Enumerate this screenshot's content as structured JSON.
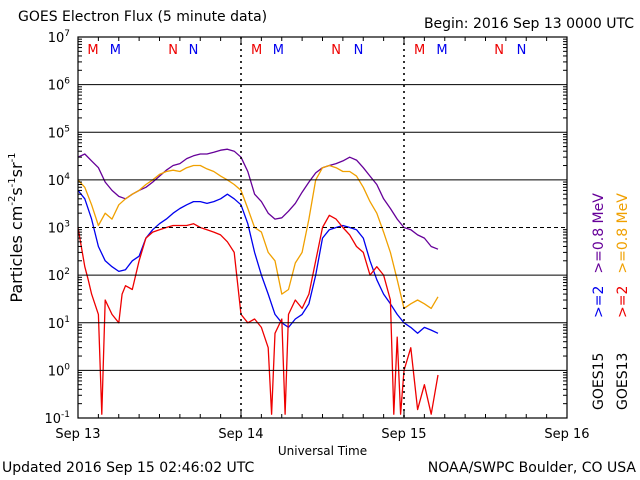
{
  "header": {
    "title": "GOES Electron Flux (5 minute data)",
    "begin": "Begin: 2016 Sep 13 0000 UTC"
  },
  "footer": {
    "updated": "Updated 2016 Sep 15 02:46:02 UTC",
    "credit": "NOAA/SWPC Boulder, CO USA"
  },
  "colors": {
    "goes15_2mev": "#0000ee",
    "goes15_08mev": "#660099",
    "goes13_2mev": "#ee0000",
    "goes13_08mev": "#f0a000"
  },
  "chart_data": {
    "type": "line",
    "xlabel": "Universal Time",
    "ylabel_parts": [
      "Particles cm",
      "-2",
      "s",
      "-1",
      "sr",
      "-1"
    ],
    "xlim": [
      0,
      72
    ],
    "ylim_exp": [
      -1,
      7
    ],
    "y_scale": "log",
    "x_ticks": [
      {
        "t": 0,
        "label": "Sep 13"
      },
      {
        "t": 24,
        "label": "Sep 14"
      },
      {
        "t": 48,
        "label": "Sep 15"
      },
      {
        "t": 72,
        "label": "Sep 16"
      }
    ],
    "y_ticks": [
      {
        "exp": -1,
        "base": "10",
        "sup": "-1"
      },
      {
        "exp": 0,
        "base": "10",
        "sup": "0"
      },
      {
        "exp": 1,
        "base": "10",
        "sup": "1"
      },
      {
        "exp": 2,
        "base": "10",
        "sup": "2"
      },
      {
        "exp": 3,
        "base": "10",
        "sup": "3"
      },
      {
        "exp": 4,
        "base": "10",
        "sup": "4"
      },
      {
        "exp": 5,
        "base": "10",
        "sup": "5"
      },
      {
        "exp": 6,
        "base": "10",
        "sup": "6"
      },
      {
        "exp": 7,
        "base": "10",
        "sup": "7"
      }
    ],
    "threshold": 1000,
    "grid": true,
    "markers": [
      {
        "t": 2.2,
        "label": "M",
        "color": "#ee0000"
      },
      {
        "t": 5.5,
        "label": "M",
        "color": "#0000ee"
      },
      {
        "t": 14.0,
        "label": "N",
        "color": "#ee0000"
      },
      {
        "t": 17.0,
        "label": "N",
        "color": "#0000ee"
      },
      {
        "t": 26.3,
        "label": "M",
        "color": "#ee0000"
      },
      {
        "t": 29.5,
        "label": "M",
        "color": "#0000ee"
      },
      {
        "t": 38.0,
        "label": "N",
        "color": "#ee0000"
      },
      {
        "t": 41.3,
        "label": "N",
        "color": "#0000ee"
      },
      {
        "t": 50.3,
        "label": "M",
        "color": "#ee0000"
      },
      {
        "t": 53.6,
        "label": "M",
        "color": "#0000ee"
      },
      {
        "t": 62.0,
        "label": "N",
        "color": "#ee0000"
      },
      {
        "t": 65.3,
        "label": "N",
        "color": "#0000ee"
      }
    ],
    "legend": {
      "placement": "right",
      "columns": [
        {
          "sat": "GOES15",
          "entries": [
            {
              "label": ">=2",
              "color": "#0000ee"
            },
            {
              "label": ">=0.8 MeV",
              "color": "#660099"
            }
          ]
        },
        {
          "sat": "GOES13",
          "entries": [
            {
              "label": ">=2",
              "color": "#ee0000"
            },
            {
              "label": ">=0.8 MeV",
              "color": "#f0a000"
            }
          ]
        }
      ]
    },
    "series": [
      {
        "key": "goes15_08mev",
        "color": "#660099",
        "t": [
          0,
          1,
          2,
          3,
          4,
          5,
          6,
          7,
          8,
          9,
          10,
          11,
          12,
          13,
          14,
          15,
          16,
          17,
          18,
          19,
          20,
          21,
          22,
          23,
          24,
          25,
          26,
          27,
          28,
          29,
          30,
          31,
          32,
          33,
          34,
          35,
          36,
          37,
          38,
          39,
          40,
          41,
          42,
          43,
          44,
          45,
          46,
          47,
          48,
          49,
          50,
          51,
          52,
          53
        ],
        "v": [
          30000,
          35000,
          25000,
          18000,
          9000,
          6000,
          4500,
          4000,
          5000,
          6000,
          7000,
          9000,
          12000,
          16000,
          20000,
          22000,
          28000,
          32000,
          35000,
          35000,
          38000,
          42000,
          44000,
          40000,
          30000,
          15000,
          5000,
          3500,
          2000,
          1500,
          1600,
          2200,
          3200,
          5500,
          9000,
          14000,
          18000,
          20000,
          22000,
          25000,
          30000,
          26000,
          18000,
          12000,
          8000,
          4000,
          2500,
          1500,
          1000,
          900,
          700,
          600,
          400,
          350
        ]
      },
      {
        "key": "goes13_08mev",
        "color": "#f0a000",
        "t": [
          0,
          1,
          2,
          3,
          4,
          5,
          6,
          7,
          8,
          9,
          10,
          11,
          12,
          13,
          14,
          15,
          16,
          17,
          18,
          19,
          20,
          21,
          22,
          23,
          24,
          25,
          26,
          27,
          28,
          29,
          30,
          31,
          32,
          33,
          34,
          35,
          36,
          37,
          38,
          39,
          40,
          41,
          42,
          43,
          44,
          45,
          46,
          47,
          48,
          49,
          50,
          51,
          52,
          53
        ],
        "v": [
          10000,
          7000,
          3000,
          1100,
          2000,
          1500,
          3000,
          4000,
          5000,
          6000,
          8000,
          10000,
          13000,
          15000,
          16000,
          15000,
          18000,
          20000,
          20000,
          17000,
          15000,
          12000,
          10000,
          8000,
          6000,
          2500,
          1000,
          800,
          300,
          200,
          40,
          50,
          180,
          300,
          1500,
          10000,
          18000,
          20000,
          18000,
          15000,
          15000,
          12000,
          7000,
          3500,
          2000,
          800,
          300,
          80,
          20,
          25,
          30,
          25,
          20,
          35
        ]
      },
      {
        "key": "goes15_2mev",
        "color": "#0000ee",
        "t": [
          0,
          1,
          2,
          3,
          4,
          5,
          6,
          7,
          8,
          9,
          10,
          11,
          12,
          13,
          14,
          15,
          16,
          17,
          18,
          19,
          20,
          21,
          22,
          23,
          24,
          25,
          26,
          27,
          28,
          29,
          30,
          31,
          32,
          33,
          34,
          35,
          36,
          37,
          38,
          39,
          40,
          41,
          42,
          43,
          44,
          45,
          46,
          47,
          48,
          49,
          50,
          51,
          52,
          53
        ],
        "v": [
          6000,
          4000,
          1500,
          400,
          200,
          150,
          120,
          130,
          200,
          250,
          600,
          900,
          1200,
          1500,
          2000,
          2500,
          3000,
          3500,
          3500,
          3200,
          3500,
          4000,
          5000,
          4000,
          3000,
          1200,
          300,
          100,
          40,
          15,
          10,
          8,
          12,
          15,
          25,
          100,
          600,
          900,
          1000,
          1100,
          1000,
          900,
          600,
          200,
          80,
          40,
          25,
          15,
          10,
          8,
          6,
          8,
          7,
          6
        ]
      },
      {
        "key": "goes13_2mev",
        "color": "#ee0000",
        "t": [
          0,
          1,
          1.5,
          2,
          3,
          3.5,
          4,
          5,
          6,
          6.5,
          7,
          8,
          9,
          10,
          11,
          12,
          13,
          14,
          15,
          16,
          17,
          18,
          19,
          20,
          21,
          22,
          23,
          24,
          25,
          26,
          27,
          28,
          28.5,
          29,
          30,
          30.5,
          31,
          32,
          33,
          34,
          35,
          36,
          37,
          38,
          39,
          40,
          41,
          42,
          43,
          44,
          45,
          46,
          46.5,
          47,
          47.5,
          48,
          49,
          50,
          51,
          52,
          53
        ],
        "v": [
          1000,
          150,
          80,
          40,
          15,
          0.12,
          30,
          15,
          10,
          40,
          60,
          50,
          200,
          600,
          800,
          900,
          1000,
          1100,
          1100,
          1100,
          1200,
          1000,
          900,
          800,
          700,
          500,
          300,
          15,
          10,
          12,
          8,
          3,
          0.12,
          6,
          12,
          0.12,
          15,
          30,
          20,
          40,
          200,
          1000,
          1800,
          1500,
          1000,
          700,
          400,
          300,
          100,
          150,
          100,
          30,
          0.12,
          5,
          0.12,
          1,
          3,
          0.15,
          0.5,
          0.12,
          0.8
        ]
      }
    ]
  }
}
